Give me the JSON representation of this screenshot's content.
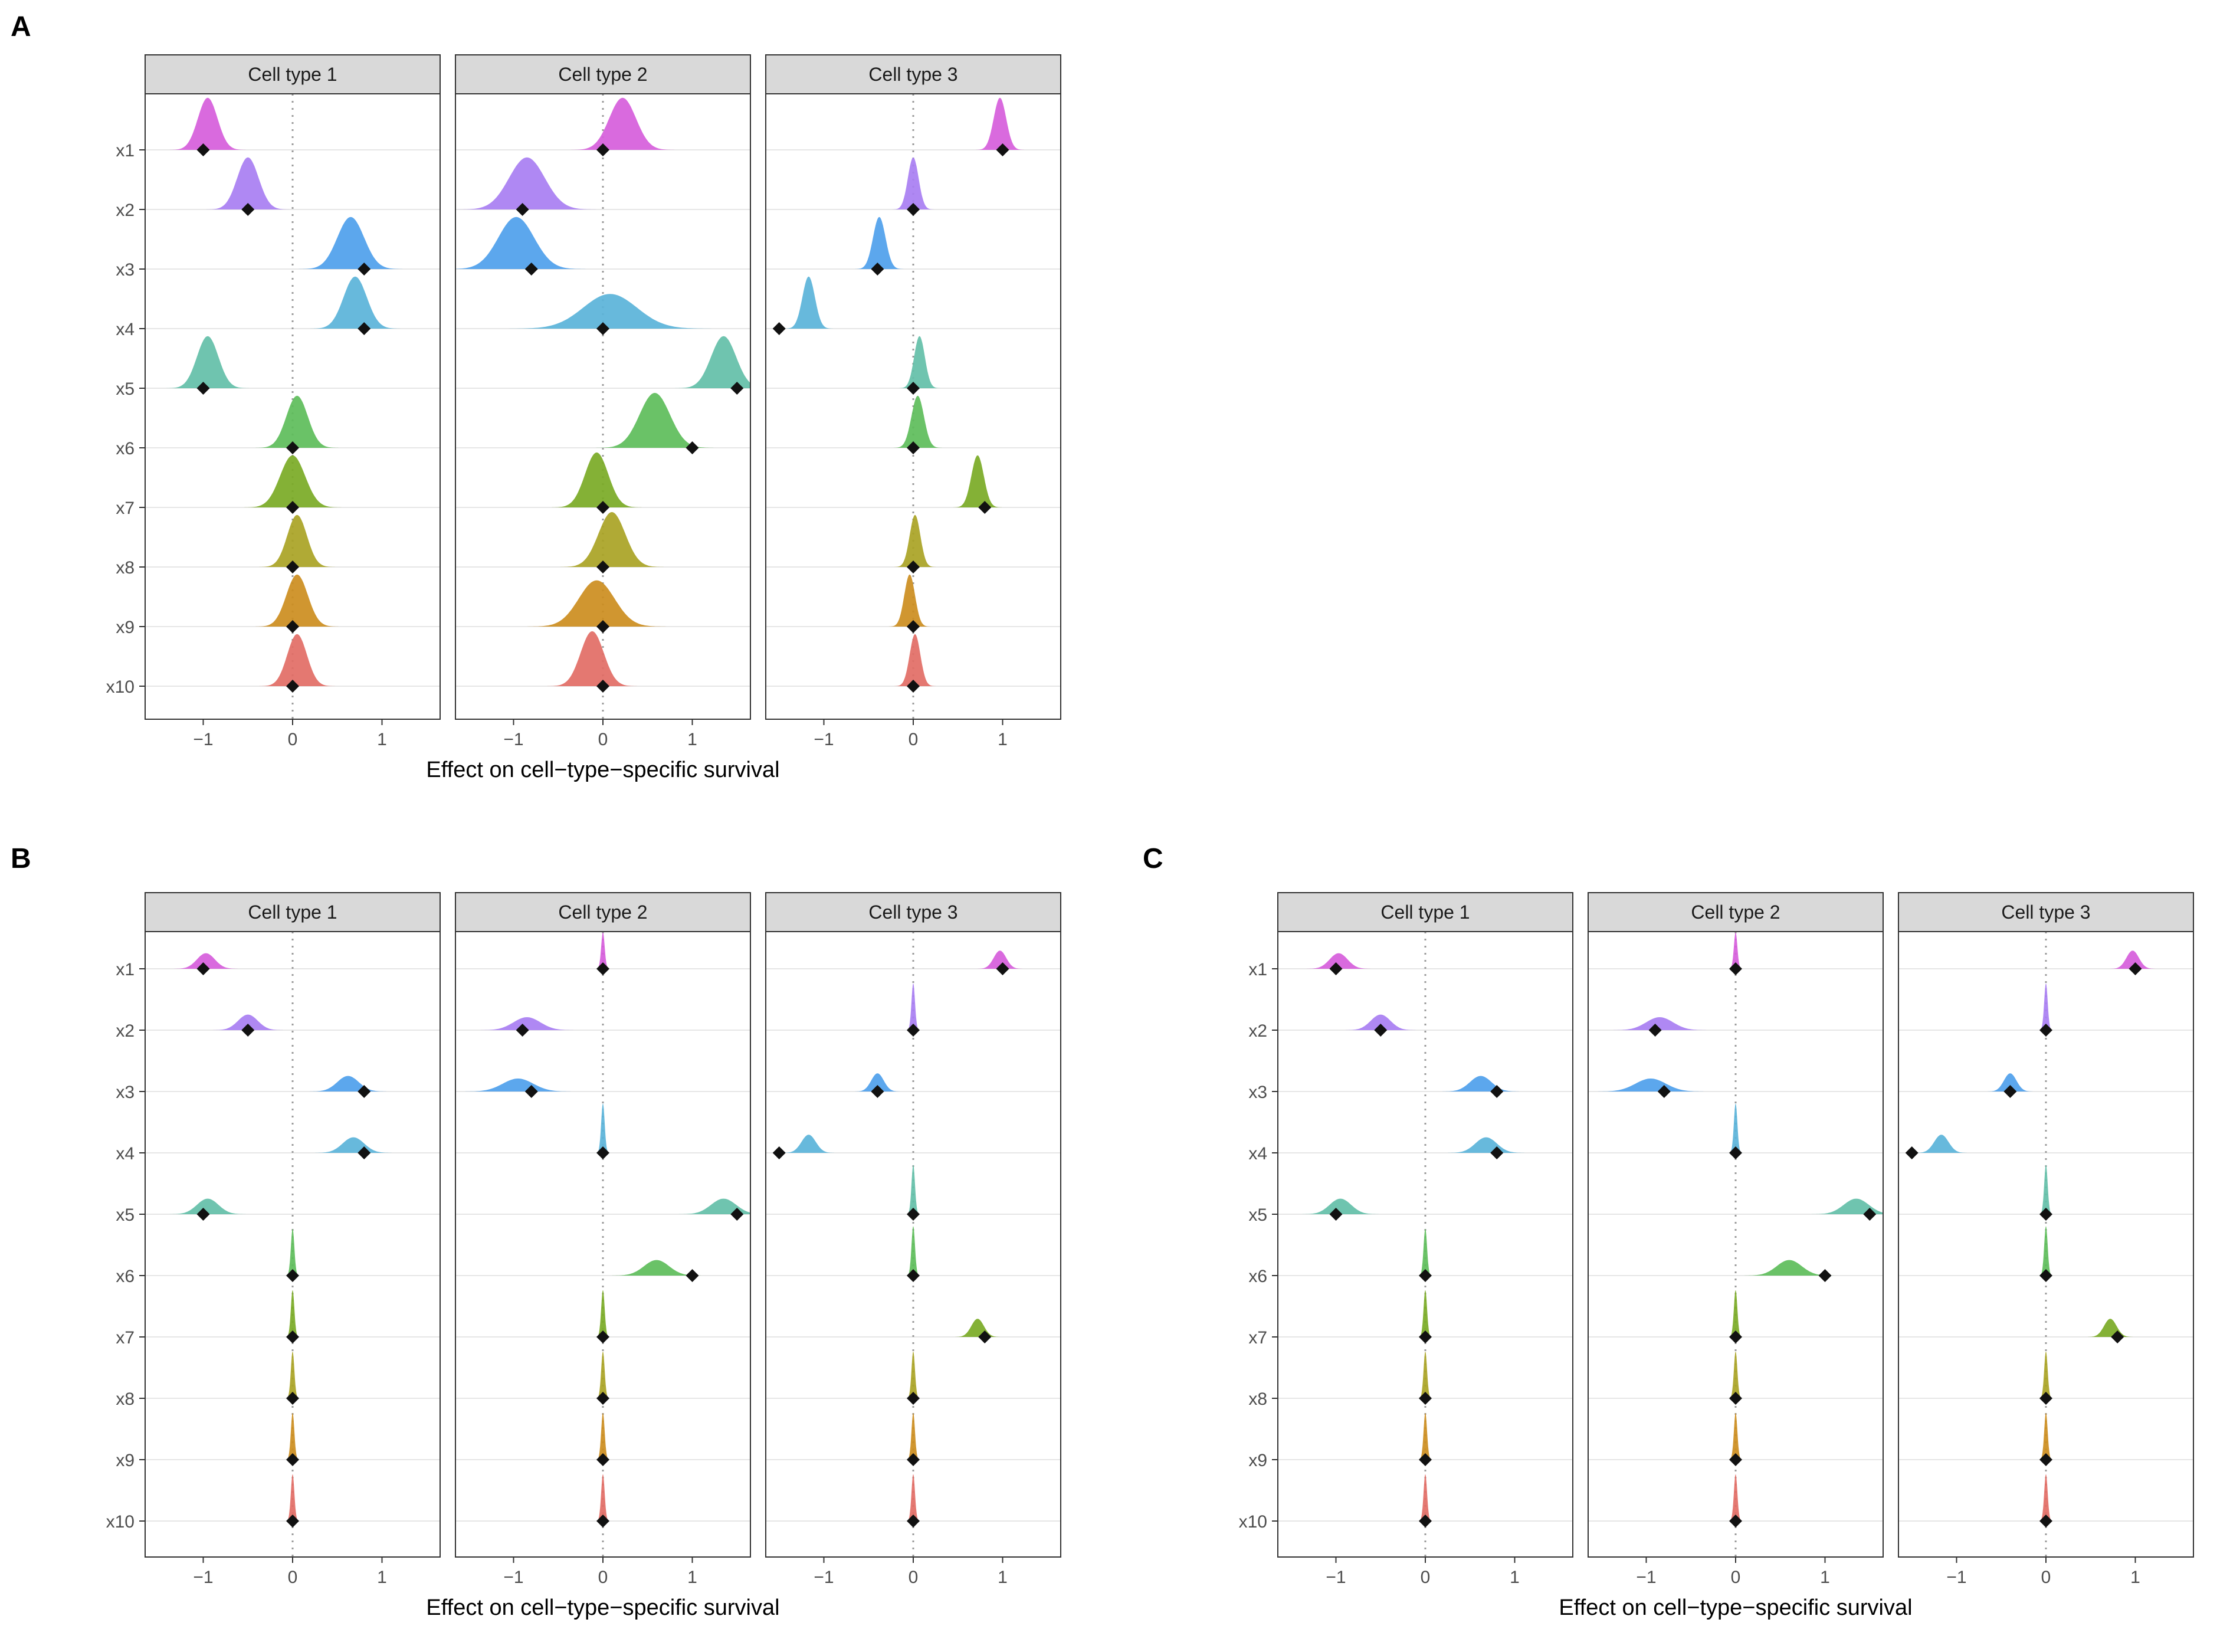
{
  "panel_letters": [
    "A",
    "B",
    "C"
  ],
  "chart_data": [
    {
      "type": "ridgeline",
      "panel": "A",
      "facets": [
        "Cell type 1",
        "Cell type 2",
        "Cell type 3"
      ],
      "rows": [
        "x1",
        "x2",
        "x3",
        "x4",
        "x5",
        "x6",
        "x7",
        "x8",
        "x9",
        "x10"
      ],
      "xlabel": "Effect on cell−type−specific survival",
      "xlim": [
        -1.65,
        1.65
      ],
      "xticks": [
        -1,
        0,
        1
      ],
      "reference_line": 0,
      "series_colors": [
        "#D65DDB",
        "#A87EF2",
        "#4E9FEC",
        "#5AB3D9",
        "#63BFA8",
        "#5DBD5A",
        "#79AA25",
        "#A9A324",
        "#CC8D1E",
        "#E26D65"
      ],
      "facet_data": [
        {
          "name": "Cell type 1",
          "peak": [
            -0.95,
            -0.5,
            0.65,
            0.7,
            -0.95,
            0.05,
            0.0,
            0.05,
            0.05,
            0.05
          ],
          "sd": [
            0.11,
            0.12,
            0.15,
            0.13,
            0.12,
            0.12,
            0.14,
            0.11,
            0.12,
            0.11
          ],
          "truth": [
            -1,
            -0.5,
            0.8,
            0.8,
            -1,
            0,
            0,
            0,
            0,
            0
          ]
        },
        {
          "name": "Cell type 2",
          "peak": [
            0.22,
            -0.85,
            -0.97,
            0.08,
            1.35,
            0.58,
            -0.07,
            0.1,
            -0.07,
            -0.12
          ],
          "sd": [
            0.15,
            0.2,
            0.2,
            0.3,
            0.14,
            0.17,
            0.13,
            0.15,
            0.2,
            0.13
          ],
          "truth": [
            0,
            -0.9,
            -0.8,
            0,
            1.5,
            1,
            0,
            0,
            0,
            0
          ],
          "height": [
            0.9,
            0.9,
            0.9,
            0.6,
            0.9,
            0.95,
            0.95,
            0.95,
            0.8,
            0.95
          ]
        },
        {
          "name": "Cell type 3",
          "peak": [
            0.97,
            0.0,
            -0.38,
            -1.17,
            0.07,
            0.05,
            0.72,
            0.02,
            -0.04,
            0.02
          ],
          "sd": [
            0.07,
            0.06,
            0.07,
            0.07,
            0.06,
            0.07,
            0.07,
            0.06,
            0.06,
            0.06
          ],
          "truth": [
            1,
            0,
            -0.4,
            -1.5,
            0,
            0,
            0.8,
            0,
            0,
            0
          ]
        }
      ]
    },
    {
      "type": "ridgeline",
      "panel": "B",
      "facets": [
        "Cell type 1",
        "Cell type 2",
        "Cell type 3"
      ],
      "rows": [
        "x1",
        "x2",
        "x3",
        "x4",
        "x5",
        "x6",
        "x7",
        "x8",
        "x9",
        "x10"
      ],
      "xlabel": "Effect on cell−type−specific survival",
      "xlim": [
        -1.65,
        1.65
      ],
      "xticks": [
        -1,
        0,
        1
      ],
      "reference_line": 0,
      "facet_data": [
        {
          "name": "Cell type 1",
          "peak": [
            -0.97,
            -0.5,
            0.62,
            0.68,
            -0.95,
            0.0,
            0.0,
            0.0,
            0.0,
            0.0
          ],
          "sd": [
            0.1,
            0.11,
            0.12,
            0.12,
            0.12,
            0.02,
            0.02,
            0.02,
            0.02,
            0.02
          ],
          "height": [
            0.3,
            0.3,
            0.3,
            0.3,
            0.3,
            0.9,
            0.9,
            0.9,
            0.9,
            0.9
          ],
          "truth": [
            -1,
            -0.5,
            0.8,
            0.8,
            -1,
            0,
            0,
            0,
            0,
            0
          ]
        },
        {
          "name": "Cell type 2",
          "peak": [
            0.0,
            -0.85,
            -0.95,
            0.0,
            1.35,
            0.6,
            0.0,
            0.0,
            0.0,
            0.0
          ],
          "sd": [
            0.02,
            0.15,
            0.17,
            0.02,
            0.14,
            0.14,
            0.02,
            0.02,
            0.02,
            0.02
          ],
          "height": [
            0.7,
            0.25,
            0.25,
            0.95,
            0.3,
            0.3,
            0.9,
            0.9,
            0.9,
            0.9
          ],
          "truth": [
            0,
            -0.9,
            -0.8,
            0,
            1.5,
            1,
            0,
            0,
            0,
            0
          ]
        },
        {
          "name": "Cell type 3",
          "peak": [
            0.97,
            0.0,
            -0.4,
            -1.17,
            0.0,
            0.0,
            0.72,
            0.0,
            0.0,
            0.0
          ],
          "sd": [
            0.07,
            0.02,
            0.07,
            0.08,
            0.02,
            0.02,
            0.07,
            0.02,
            0.02,
            0.02
          ],
          "height": [
            0.35,
            0.9,
            0.35,
            0.35,
            0.95,
            0.95,
            0.35,
            0.9,
            0.9,
            0.9
          ],
          "truth": [
            1,
            0,
            -0.4,
            -1.5,
            0,
            0,
            0.8,
            0,
            0,
            0
          ]
        }
      ]
    },
    {
      "type": "ridgeline",
      "panel": "C",
      "facets": [
        "Cell type 1",
        "Cell type 2",
        "Cell type 3"
      ],
      "rows": [
        "x1",
        "x2",
        "x3",
        "x4",
        "x5",
        "x6",
        "x7",
        "x8",
        "x9",
        "x10"
      ],
      "xlabel": "Effect on cell−type−specific survival",
      "xlim": [
        -1.65,
        1.65
      ],
      "xticks": [
        -1,
        0,
        1
      ],
      "reference_line": 0,
      "facet_data": [
        {
          "name": "Cell type 1",
          "peak": [
            -0.97,
            -0.5,
            0.62,
            0.68,
            -0.95,
            0.0,
            0.0,
            0.0,
            0.0,
            0.0
          ],
          "sd": [
            0.1,
            0.11,
            0.12,
            0.12,
            0.12,
            0.02,
            0.02,
            0.02,
            0.02,
            0.02
          ],
          "height": [
            0.3,
            0.3,
            0.3,
            0.3,
            0.3,
            0.9,
            0.9,
            0.9,
            0.9,
            0.9
          ],
          "truth": [
            -1,
            -0.5,
            0.8,
            0.8,
            -1,
            0,
            0,
            0,
            0,
            0
          ]
        },
        {
          "name": "Cell type 2",
          "peak": [
            0.0,
            -0.85,
            -0.95,
            0.0,
            1.35,
            0.6,
            0.0,
            0.0,
            0.0,
            0.0
          ],
          "sd": [
            0.02,
            0.15,
            0.17,
            0.02,
            0.14,
            0.14,
            0.02,
            0.02,
            0.02,
            0.02
          ],
          "height": [
            0.7,
            0.25,
            0.25,
            0.95,
            0.3,
            0.3,
            0.9,
            0.9,
            0.9,
            0.9
          ],
          "truth": [
            0,
            -0.9,
            -0.8,
            0,
            1.5,
            1,
            0,
            0,
            0,
            0
          ]
        },
        {
          "name": "Cell type 3",
          "peak": [
            0.97,
            0.0,
            -0.4,
            -1.17,
            0.0,
            0.0,
            0.72,
            0.0,
            0.0,
            0.0
          ],
          "sd": [
            0.07,
            0.02,
            0.07,
            0.08,
            0.02,
            0.02,
            0.07,
            0.02,
            0.02,
            0.02
          ],
          "height": [
            0.35,
            0.9,
            0.35,
            0.35,
            0.95,
            0.95,
            0.35,
            0.9,
            0.9,
            0.9
          ],
          "truth": [
            1,
            0,
            -0.4,
            -1.5,
            0,
            0,
            0.8,
            0,
            0,
            0
          ]
        }
      ]
    }
  ]
}
